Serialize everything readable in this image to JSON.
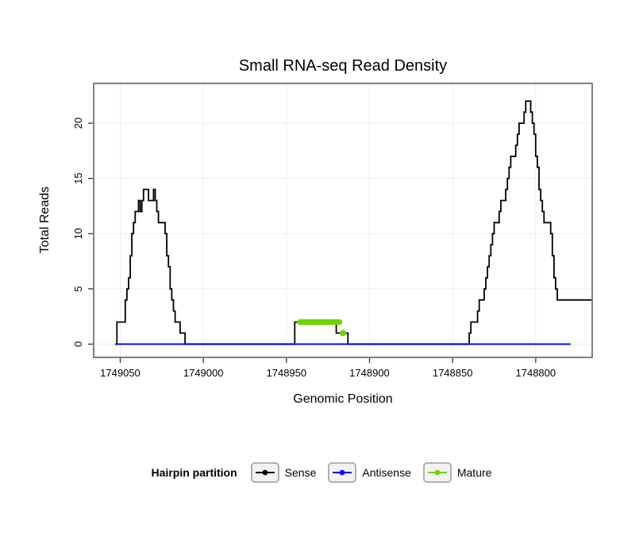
{
  "chart_data": {
    "type": "line",
    "title": "Small RNA-seq Read Density",
    "xlabel": "Genomic Position",
    "ylabel": "Total Reads",
    "x_axis_reversed": true,
    "x_range_left_to_right": [
      1749066,
      1748766
    ],
    "y_range": [
      -1.2,
      23.6
    ],
    "x_ticks": [
      1749050,
      1749000,
      1748950,
      1748900,
      1748850,
      1748800
    ],
    "y_ticks": [
      0,
      5,
      10,
      15,
      20
    ],
    "grid": true,
    "panel_border_color": "#808080",
    "gridline_color": "#ededed",
    "series": [
      {
        "name": "Sense",
        "color": "#000000",
        "style": "step",
        "points": [
          [
            1749053,
            0
          ],
          [
            1749052,
            2
          ],
          [
            1749048,
            2
          ],
          [
            1749047,
            4
          ],
          [
            1749046,
            5
          ],
          [
            1749045,
            6
          ],
          [
            1749044,
            8
          ],
          [
            1749043,
            10
          ],
          [
            1749042,
            11
          ],
          [
            1749041,
            12
          ],
          [
            1749039,
            13
          ],
          [
            1749038,
            12
          ],
          [
            1749037,
            13
          ],
          [
            1749036,
            14
          ],
          [
            1749034,
            14
          ],
          [
            1749033,
            13
          ],
          [
            1749031,
            13
          ],
          [
            1749030,
            14
          ],
          [
            1749029,
            13
          ],
          [
            1749028,
            12
          ],
          [
            1749027,
            11
          ],
          [
            1749024,
            11
          ],
          [
            1749023,
            10
          ],
          [
            1749022,
            8
          ],
          [
            1749021,
            7
          ],
          [
            1749020,
            5
          ],
          [
            1749019,
            4
          ],
          [
            1749018,
            3
          ],
          [
            1749017,
            2
          ],
          [
            1749015,
            2
          ],
          [
            1749014,
            1
          ],
          [
            1749012,
            1
          ],
          [
            1749011,
            0
          ],
          [
            1748946,
            0
          ],
          [
            1748945,
            2
          ],
          [
            1748921,
            2
          ],
          [
            1748920,
            1
          ],
          [
            1748914,
            1
          ],
          [
            1748913,
            0
          ],
          [
            1748841,
            0
          ],
          [
            1748840,
            1
          ],
          [
            1748839,
            2
          ],
          [
            1748836,
            2
          ],
          [
            1748835,
            3
          ],
          [
            1748834,
            4
          ],
          [
            1748832,
            4
          ],
          [
            1748831,
            5
          ],
          [
            1748830,
            6
          ],
          [
            1748829,
            7
          ],
          [
            1748828,
            8
          ],
          [
            1748827,
            9
          ],
          [
            1748826,
            10
          ],
          [
            1748825,
            11
          ],
          [
            1748823,
            11
          ],
          [
            1748822,
            12
          ],
          [
            1748821,
            13
          ],
          [
            1748819,
            13
          ],
          [
            1748818,
            14
          ],
          [
            1748817,
            15
          ],
          [
            1748816,
            16
          ],
          [
            1748815,
            17
          ],
          [
            1748813,
            17
          ],
          [
            1748812,
            18
          ],
          [
            1748811,
            19
          ],
          [
            1748810,
            20
          ],
          [
            1748808,
            20
          ],
          [
            1748807,
            21
          ],
          [
            1748806,
            22
          ],
          [
            1748804,
            22
          ],
          [
            1748803,
            21
          ],
          [
            1748802,
            20
          ],
          [
            1748801,
            19
          ],
          [
            1748800,
            17
          ],
          [
            1748799,
            16
          ],
          [
            1748798,
            14
          ],
          [
            1748797,
            13
          ],
          [
            1748796,
            12
          ],
          [
            1748795,
            11
          ],
          [
            1748792,
            11
          ],
          [
            1748791,
            10
          ],
          [
            1748790,
            8
          ],
          [
            1748789,
            6
          ],
          [
            1748788,
            5
          ],
          [
            1748787,
            4
          ],
          [
            1748766,
            4
          ]
        ]
      },
      {
        "name": "Antisense",
        "color": "#0000ff",
        "style": "step",
        "points": [
          [
            1749053,
            0
          ],
          [
            1748779,
            0
          ]
        ]
      },
      {
        "name": "Mature",
        "color": "#6fd300",
        "style": "segment-point",
        "segment": {
          "x1": 1748942,
          "x2": 1748918,
          "y": 2
        },
        "point": {
          "x": 1748916,
          "y": 1
        }
      }
    ]
  },
  "legend": {
    "title": "Hairpin partition",
    "entries": [
      {
        "label": "Sense",
        "color": "#000000"
      },
      {
        "label": "Antisense",
        "color": "#0000ff"
      },
      {
        "label": "Mature",
        "color": "#6fd300"
      }
    ]
  }
}
